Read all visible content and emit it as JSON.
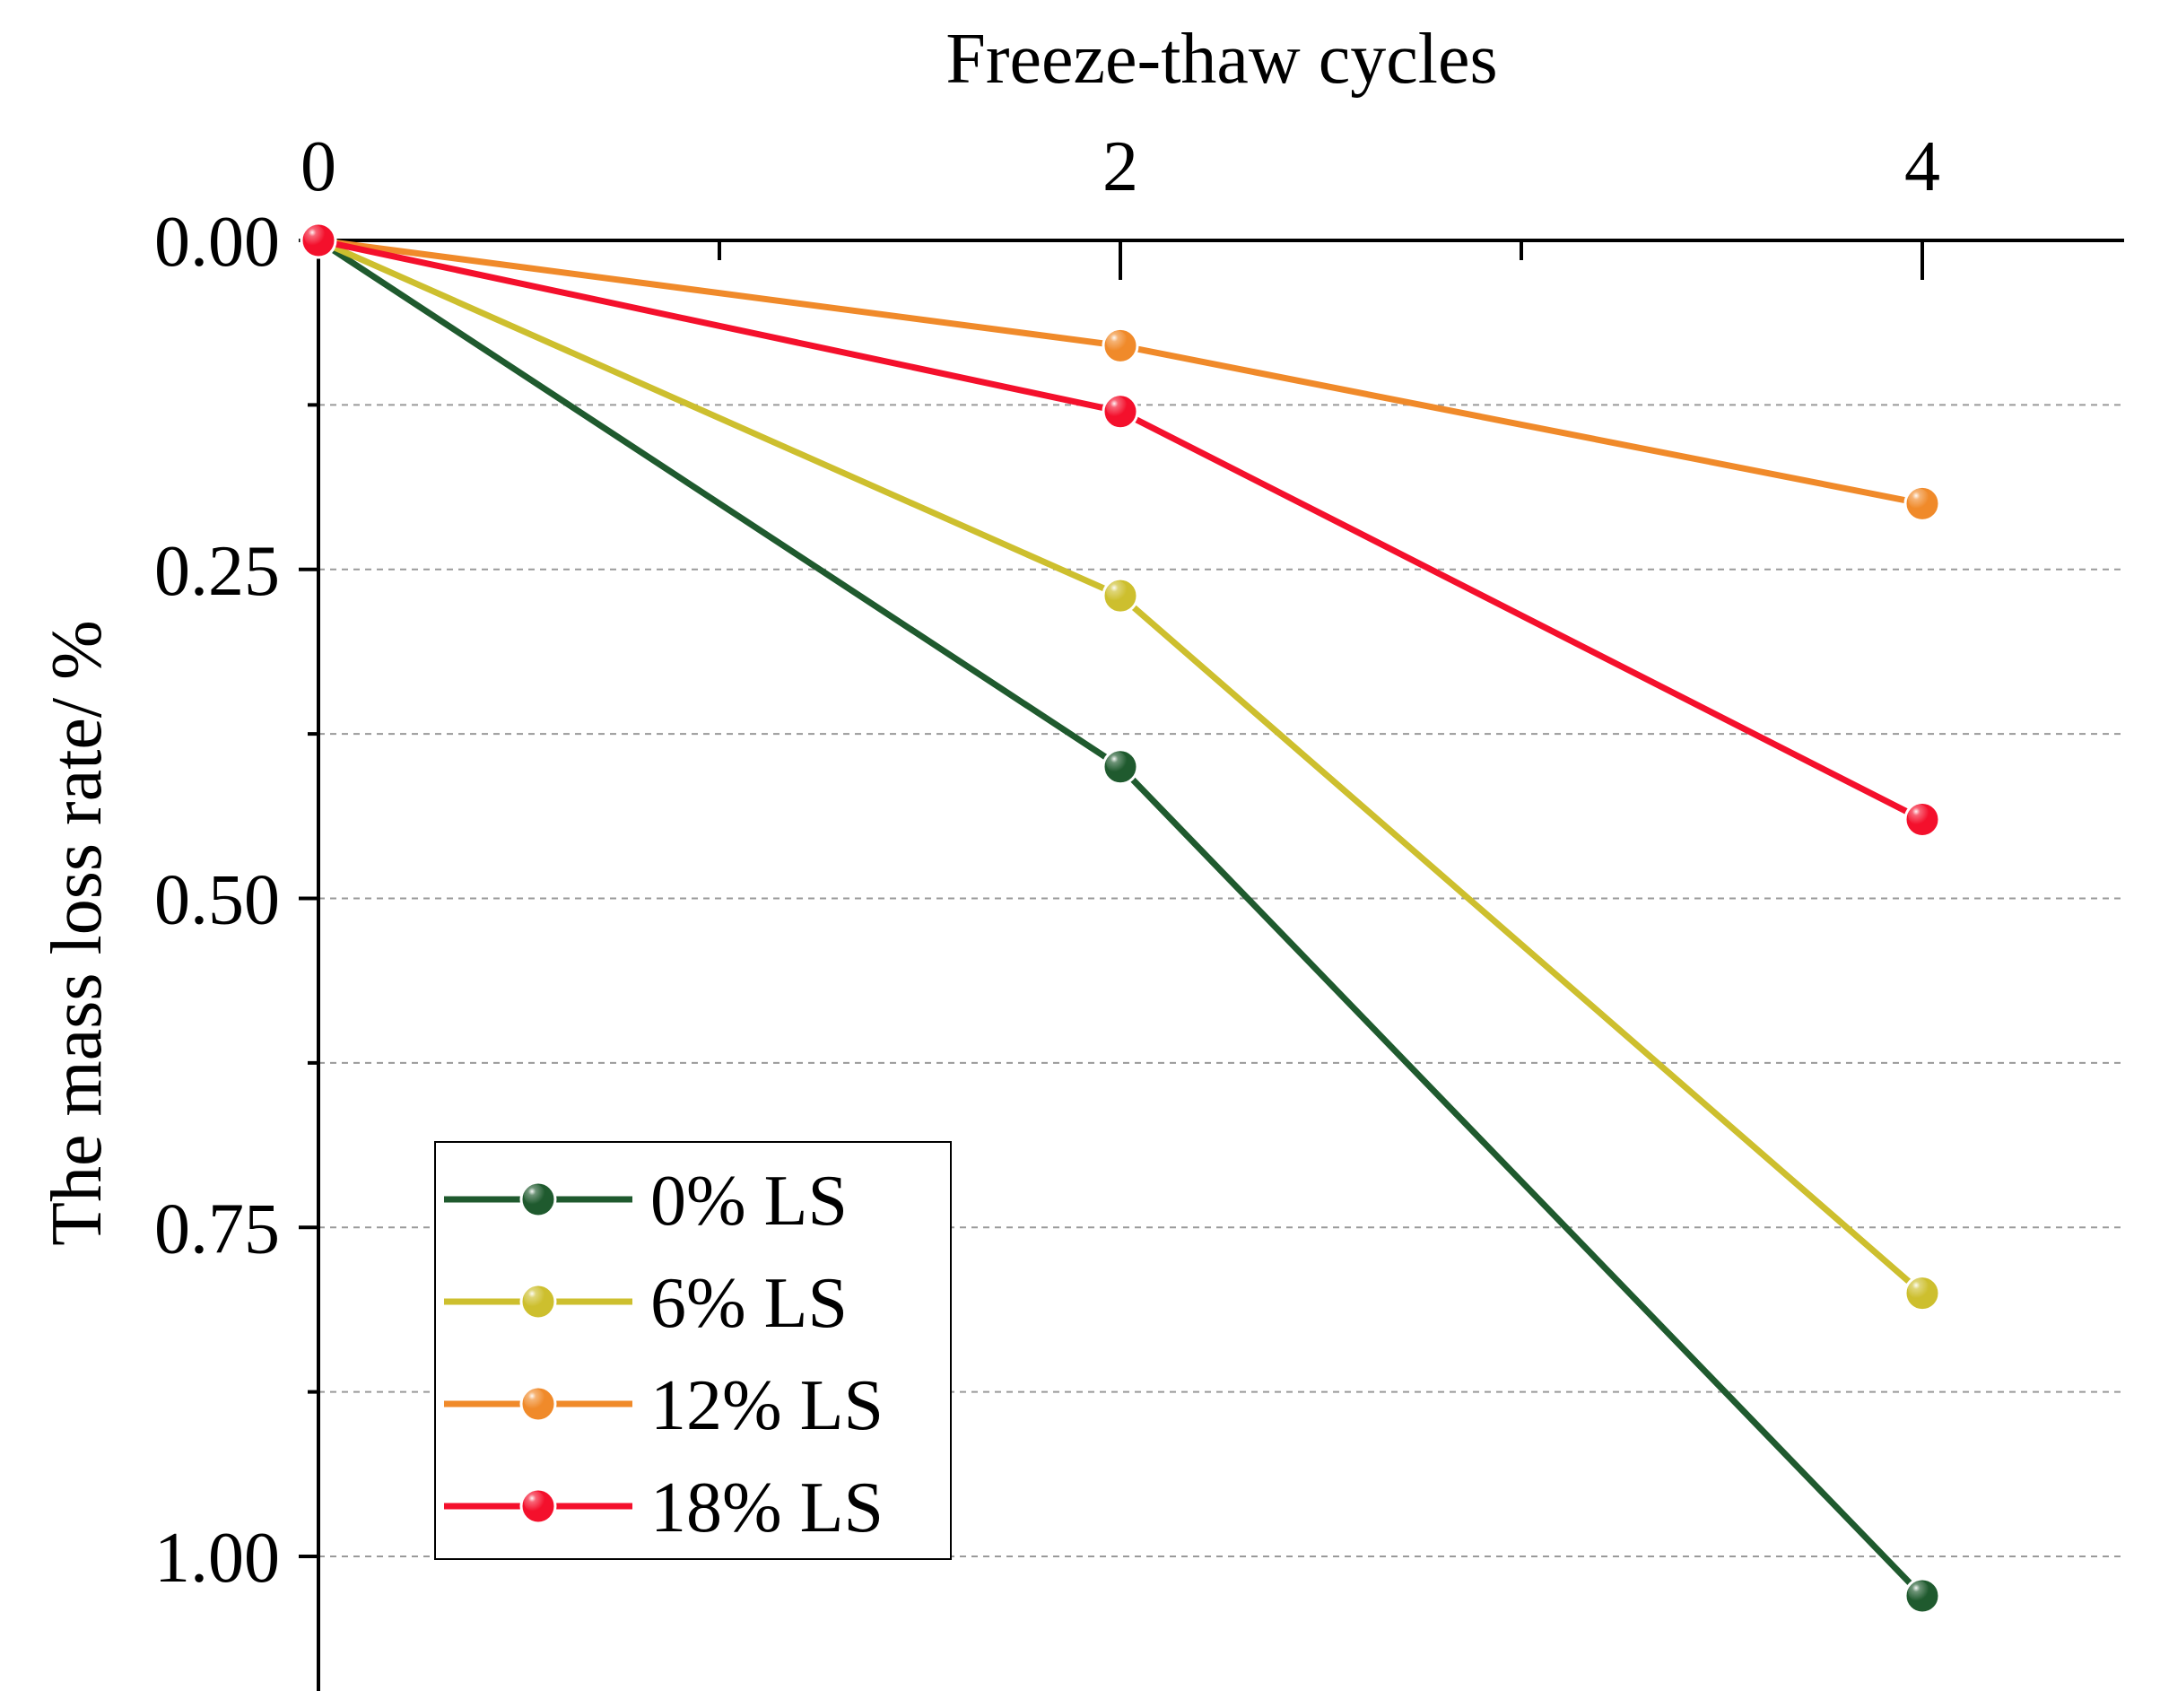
{
  "chart_data": {
    "type": "line",
    "xlabel": "Freeze-thaw cycles",
    "ylabel": "The mass loss rate/ %",
    "x": [
      0,
      2,
      4
    ],
    "x_ticks": [
      0,
      2,
      4
    ],
    "x_tick_labels": [
      "0",
      "2",
      "4"
    ],
    "xlim": [
      0,
      4.5
    ],
    "ylim": [
      0,
      1.1
    ],
    "y_inverted": true,
    "y_ticks": [
      0,
      0.25,
      0.5,
      0.75,
      1.0
    ],
    "y_tick_labels": [
      "0.00",
      "0.25",
      "0.50",
      "0.75",
      "1.00"
    ],
    "y_minor_ticks": [
      0.125,
      0.375,
      0.625,
      0.875
    ],
    "grid": true,
    "legend_position": "bottom-left",
    "series": [
      {
        "name": "0% LS",
        "color": "#1f5a2e",
        "values": [
          0,
          0.4,
          1.03
        ]
      },
      {
        "name": "6% LS",
        "color": "#cdbf2e",
        "values": [
          0,
          0.27,
          0.8
        ]
      },
      {
        "name": "12% LS",
        "color": "#f08a2a",
        "values": [
          0,
          0.08,
          0.2
        ]
      },
      {
        "name": "18% LS",
        "color": "#f4102c",
        "values": [
          0,
          0.13,
          0.44
        ]
      }
    ]
  }
}
